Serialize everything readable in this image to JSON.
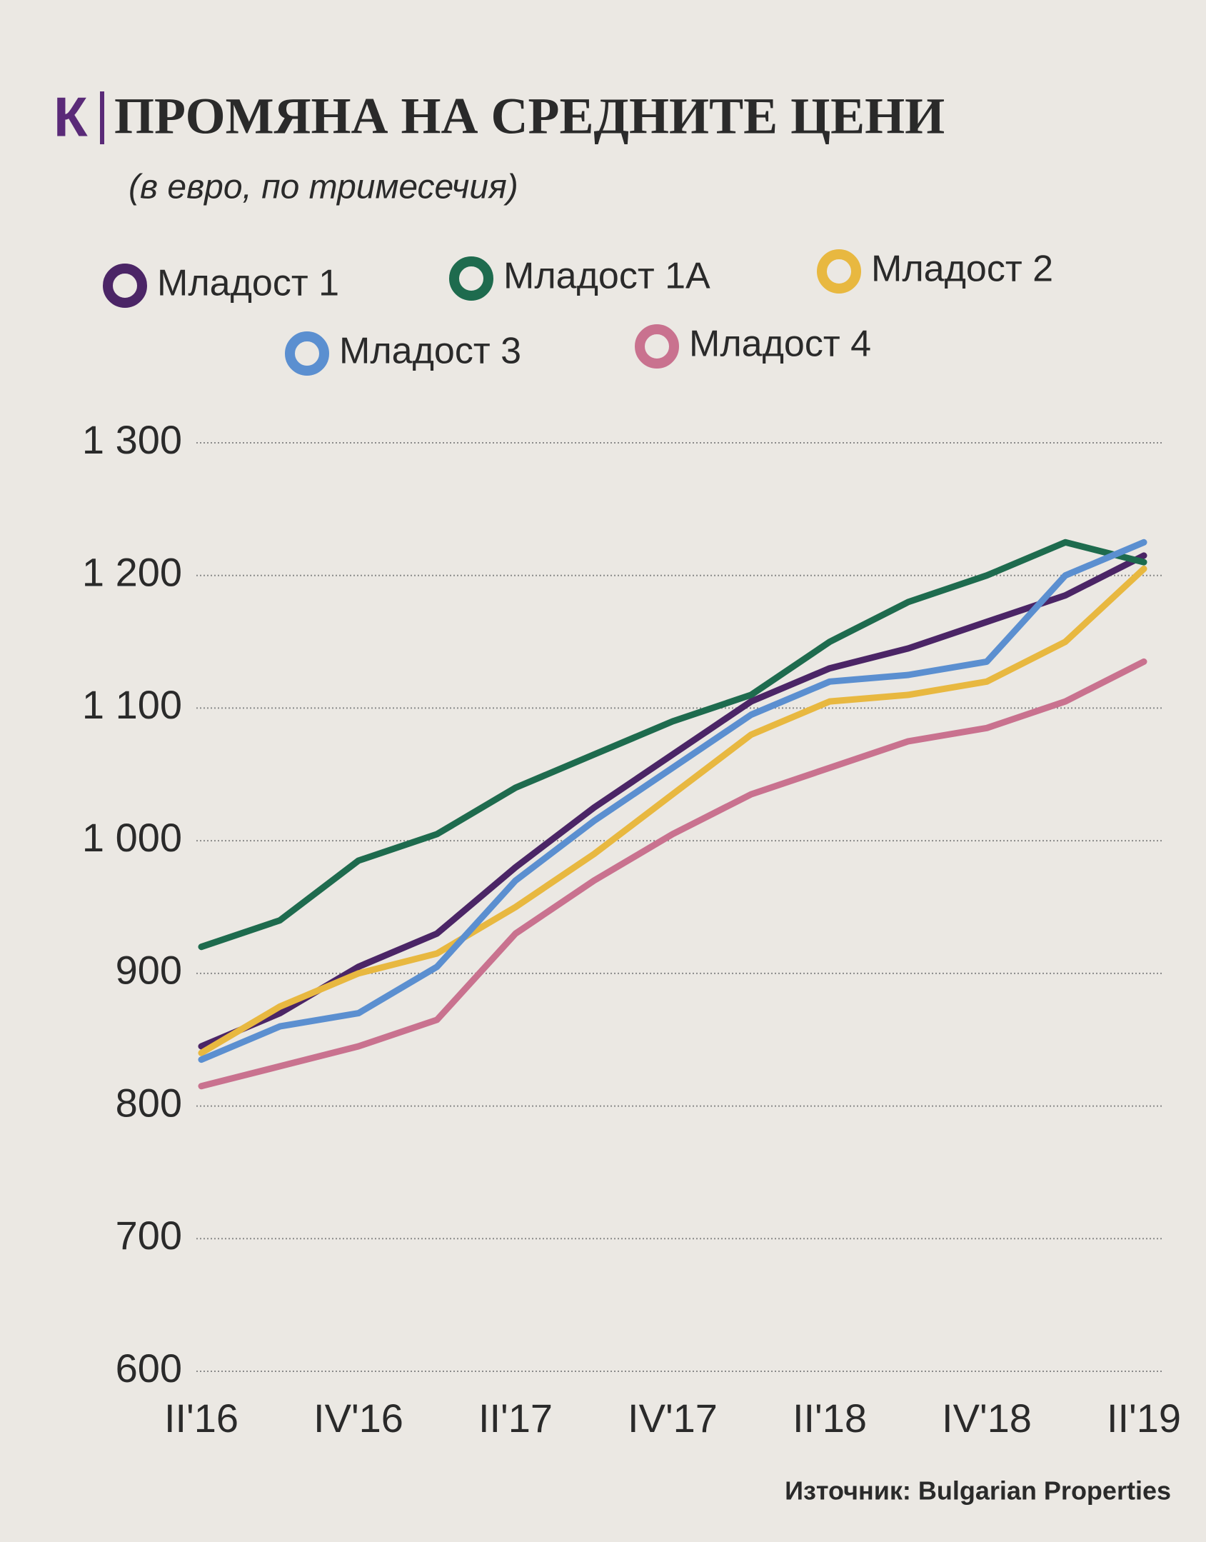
{
  "chart_data": {
    "type": "line",
    "logo": "К",
    "title": "ПРОМЯНА НА СРЕДНИТЕ ЦЕНИ",
    "subtitle": "(в евро, по тримесечия)",
    "source": "Източник: Bulgarian Properties",
    "categories": [
      "II'16",
      null,
      "IV'16",
      null,
      "II'17",
      null,
      "IV'17",
      null,
      "II'18",
      null,
      "IV'18",
      null,
      "II'19"
    ],
    "series": [
      {
        "name": "Младост 1",
        "color": "#4b2566",
        "values": [
          845,
          870,
          905,
          930,
          980,
          1025,
          1065,
          1105,
          1130,
          1145,
          1165,
          1185,
          1215
        ]
      },
      {
        "name": "Младост 1А",
        "color": "#1e6b4e",
        "values": [
          920,
          940,
          985,
          1005,
          1040,
          1065,
          1090,
          1110,
          1150,
          1180,
          1200,
          1225,
          1210
        ]
      },
      {
        "name": "Младост 2",
        "color": "#e8b840",
        "values": [
          840,
          875,
          900,
          915,
          950,
          990,
          1035,
          1080,
          1105,
          1110,
          1120,
          1150,
          1205
        ]
      },
      {
        "name": "Младост 3",
        "color": "#5b8fd0",
        "values": [
          835,
          860,
          870,
          905,
          970,
          1015,
          1055,
          1095,
          1120,
          1125,
          1135,
          1200,
          1225
        ]
      },
      {
        "name": "Младост 4",
        "color": "#c9728f",
        "values": [
          815,
          830,
          845,
          865,
          930,
          970,
          1005,
          1035,
          1055,
          1075,
          1085,
          1105,
          1135
        ]
      }
    ],
    "ylim": [
      600,
      1300
    ],
    "yticks": [
      600,
      700,
      800,
      900,
      {
        "value": 1000,
        "label": "1 000"
      },
      {
        "value": 1100,
        "label": "1 100"
      },
      {
        "value": 1200,
        "label": "1 200"
      },
      {
        "value": 1300,
        "label": "1 300"
      }
    ],
    "grid": true
  }
}
